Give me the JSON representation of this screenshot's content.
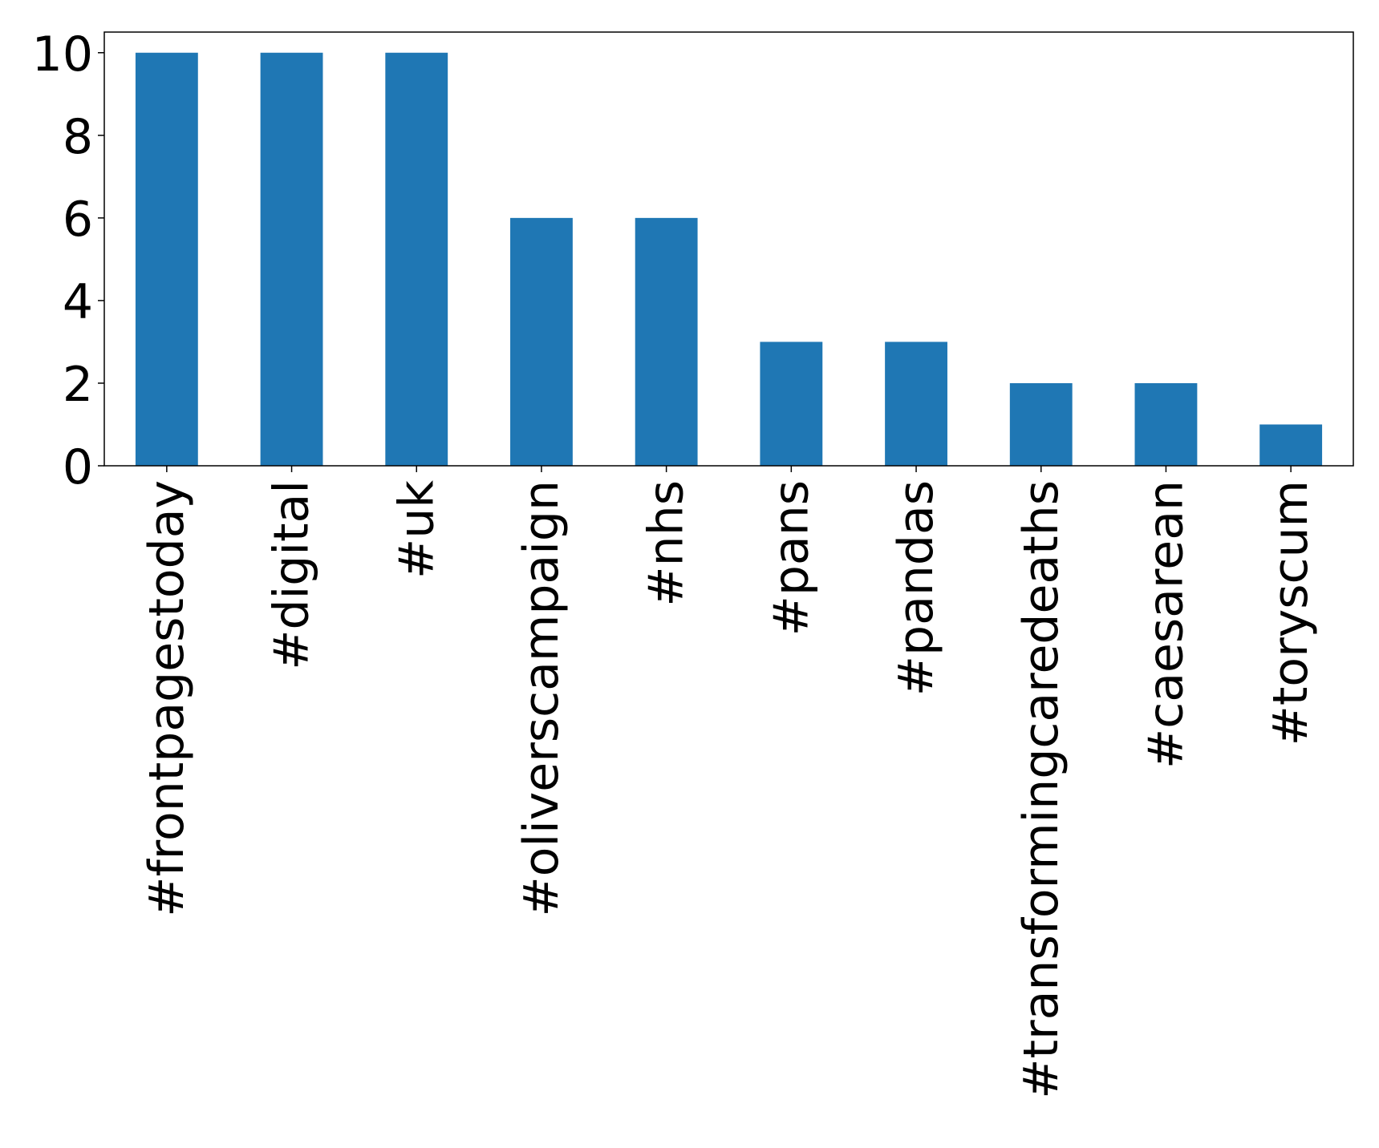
{
  "chart_data": {
    "type": "bar",
    "title": "",
    "xlabel": "",
    "ylabel": "",
    "categories": [
      "#frontpagestoday",
      "#digital",
      "#uk",
      "#oliverscampaign",
      "#nhs",
      "#pans",
      "#pandas",
      "#transformingcaredeaths",
      "#caesarean",
      "#toryscum"
    ],
    "values": [
      10,
      10,
      10,
      6,
      6,
      3,
      3,
      2,
      2,
      1
    ],
    "ylim": [
      0,
      10.5
    ],
    "yticks": [
      0,
      2,
      4,
      6,
      8,
      10
    ],
    "grid": false,
    "legend": "none",
    "bar_color": "#1f77b4"
  }
}
